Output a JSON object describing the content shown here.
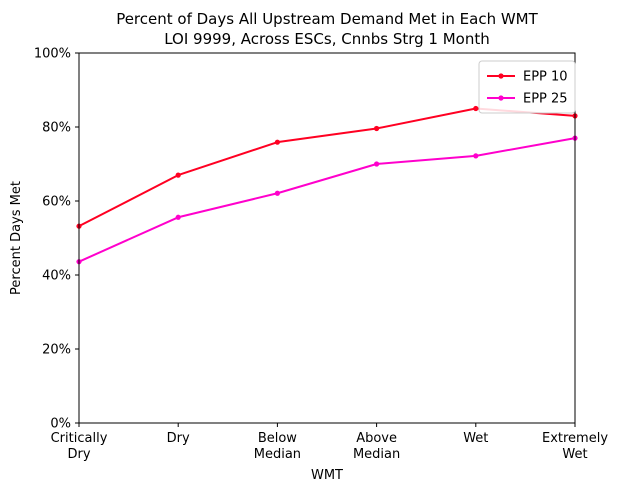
{
  "chart_data": {
    "type": "line",
    "title_lines": [
      "Percent of Days All Upstream Demand Met in Each WMT",
      "LOI 9999, Across ESCs, Cnnbs Strg 1 Month"
    ],
    "xlabel": "WMT",
    "ylabel": "Percent Days Met",
    "categories": [
      [
        "Critically",
        "Dry"
      ],
      [
        "Dry"
      ],
      [
        "Below",
        "Median"
      ],
      [
        "Above",
        "Median"
      ],
      [
        "Wet"
      ],
      [
        "Extremely",
        "Wet"
      ]
    ],
    "yticks": [
      0,
      20,
      40,
      60,
      80,
      100
    ],
    "ytick_labels": [
      "0%",
      "20%",
      "40%",
      "60%",
      "80%",
      "100%"
    ],
    "ylim": [
      0,
      100
    ],
    "grid": false,
    "legend_position": "top-right",
    "series": [
      {
        "name": "EPP 10",
        "color": "#ff0022",
        "values": [
          53.2,
          67.0,
          75.9,
          79.6,
          85.0,
          83.0
        ]
      },
      {
        "name": "EPP 25",
        "color": "#ff00cc",
        "values": [
          43.6,
          55.6,
          62.1,
          70.0,
          72.2,
          77.0
        ]
      }
    ]
  }
}
